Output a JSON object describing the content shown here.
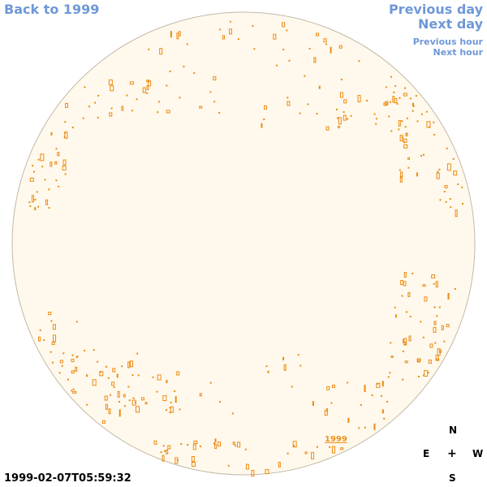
{
  "nav": {
    "back": "Back to 1999",
    "previous_day": "Previous day",
    "next_day": "Next day",
    "previous_hour": "Previous hour",
    "next_hour": "Next hour"
  },
  "timestamp": "1999-02-07T05:59:32",
  "compass": {
    "north": "N",
    "east": "E",
    "west": "W",
    "south": "S",
    "center": "+"
  },
  "map_label": "1999",
  "colors": {
    "disc_fill": "#fef9ec",
    "disc_stroke": "#c4b9a8",
    "feature": "#ee8a12",
    "link": "#6f98d8"
  }
}
